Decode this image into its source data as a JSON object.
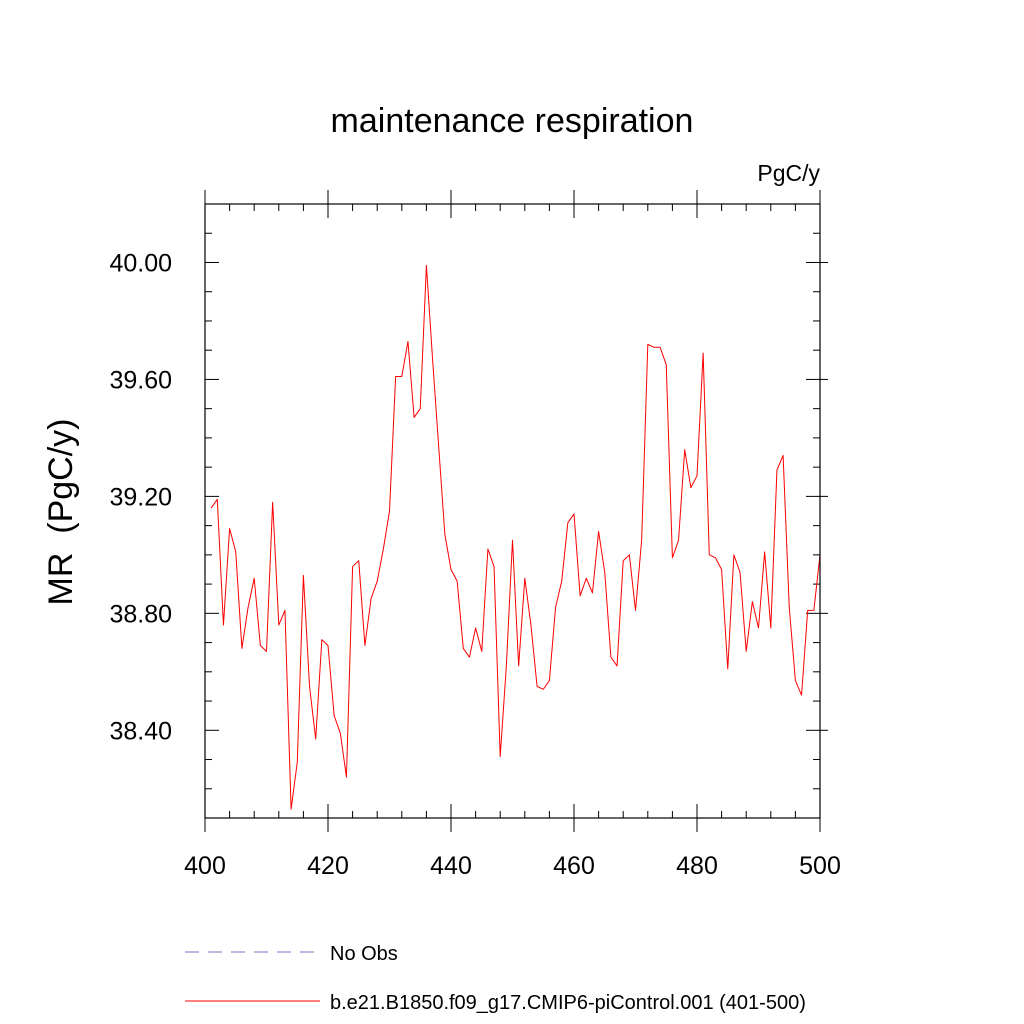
{
  "chart_data": {
    "type": "line",
    "title": "maintenance respiration",
    "units_label": "PgC/y",
    "ylabel": "MR  (PgC/y)",
    "xlabel": "",
    "xlim": [
      400,
      500
    ],
    "ylim": [
      38.1,
      40.2
    ],
    "x_ticks": [
      400,
      420,
      440,
      460,
      480,
      500
    ],
    "y_ticks": [
      38.4,
      38.8,
      39.2,
      39.6,
      40.0
    ],
    "grid": false,
    "series": [
      {
        "name": "No Obs",
        "color": "#7b6fc4",
        "dash": true,
        "values": []
      },
      {
        "name": "b.e21.B1850.f09_g17.CMIP6-piControl.001 (401-500)",
        "color": "#ff0000",
        "dash": false,
        "x_start": 401,
        "values": [
          39.16,
          39.19,
          38.76,
          39.09,
          39.01,
          38.68,
          38.82,
          38.92,
          38.69,
          38.67,
          39.18,
          38.76,
          38.81,
          38.13,
          38.29,
          38.93,
          38.55,
          38.37,
          38.71,
          38.69,
          38.45,
          38.39,
          38.24,
          38.96,
          38.98,
          38.69,
          38.85,
          38.91,
          39.02,
          39.15,
          39.61,
          39.61,
          39.73,
          39.47,
          39.5,
          39.99,
          39.67,
          39.37,
          39.07,
          38.95,
          38.91,
          38.68,
          38.65,
          38.75,
          38.67,
          39.02,
          38.96,
          38.31,
          38.62,
          39.05,
          38.62,
          38.92,
          38.76,
          38.55,
          38.54,
          38.57,
          38.82,
          38.91,
          39.11,
          39.14,
          38.86,
          38.92,
          38.87,
          39.08,
          38.94,
          38.65,
          38.62,
          38.98,
          39.0,
          38.81,
          39.05,
          39.72,
          39.71,
          39.71,
          39.65,
          38.99,
          39.05,
          39.36,
          39.23,
          39.27,
          39.69,
          39.0,
          38.99,
          38.95,
          38.61,
          39.0,
          38.94,
          38.67,
          38.84,
          38.75,
          39.01,
          38.75,
          39.29,
          39.34,
          38.82,
          38.57,
          38.52,
          38.81,
          38.81,
          39.0
        ]
      }
    ]
  }
}
